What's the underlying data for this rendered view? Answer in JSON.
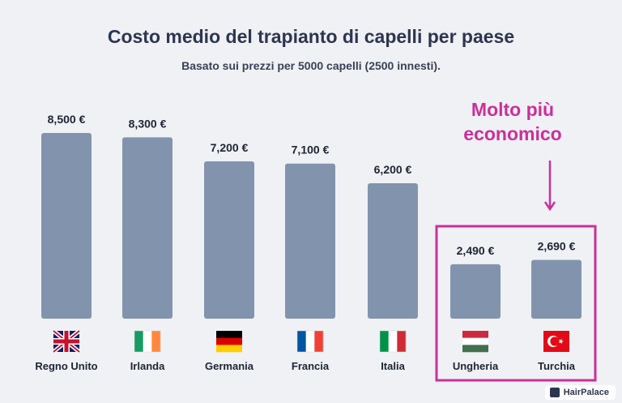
{
  "title": "Costo medio del trapianto di capelli per paese",
  "subtitle": "Basato sui prezzi per 5000 capelli (2500 innesti).",
  "annotation": {
    "line1": "Molto più",
    "line2": "economico"
  },
  "logo": {
    "text": "HairPalace"
  },
  "colors": {
    "bar": "#8294ad",
    "highlight": "#cc2f9a",
    "label": "#1f2433"
  },
  "chart_data": {
    "type": "bar",
    "categories": [
      "Regno Unito",
      "Irlanda",
      "Germania",
      "Francia",
      "Italia",
      "Ungheria",
      "Turchia"
    ],
    "values": [
      8500,
      8300,
      7200,
      7100,
      6200,
      2490,
      2690
    ],
    "value_labels": [
      "8,500 €",
      "8,300 €",
      "7,200 €",
      "7,100 €",
      "6,200 €",
      "2,490 €",
      "2,690 €"
    ],
    "flags": [
      "uk",
      "ireland",
      "germany",
      "france",
      "italy",
      "hungary",
      "turkey"
    ],
    "highlighted": [
      "Ungheria",
      "Turchia"
    ],
    "title": "Costo medio del trapianto di capelli per paese",
    "xlabel": "",
    "ylabel": "",
    "ylim": [
      0,
      8500
    ],
    "grid": false,
    "legend": "none"
  }
}
